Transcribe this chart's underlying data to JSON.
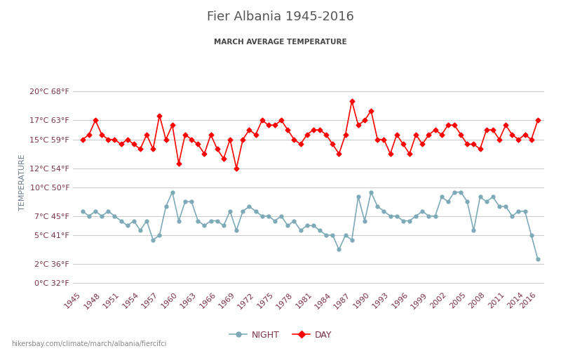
{
  "title": "Fier Albania 1945-2016",
  "subtitle": "MARCH AVERAGE TEMPERATURE",
  "xlabel_url": "hikersbay.com/climate/march/albania/fiercifci",
  "ylabel": "TEMPERATURE",
  "legend_night": "NIGHT",
  "legend_day": "DAY",
  "years": [
    1945,
    1946,
    1947,
    1948,
    1949,
    1950,
    1951,
    1952,
    1953,
    1954,
    1955,
    1956,
    1957,
    1958,
    1959,
    1960,
    1961,
    1962,
    1963,
    1964,
    1965,
    1966,
    1967,
    1968,
    1969,
    1970,
    1971,
    1972,
    1973,
    1974,
    1975,
    1976,
    1977,
    1978,
    1979,
    1980,
    1981,
    1982,
    1983,
    1984,
    1985,
    1986,
    1987,
    1988,
    1989,
    1990,
    1991,
    1992,
    1993,
    1994,
    1995,
    1996,
    1997,
    1998,
    1999,
    2000,
    2001,
    2002,
    2003,
    2004,
    2005,
    2006,
    2007,
    2008,
    2009,
    2010,
    2011,
    2012,
    2013,
    2014,
    2015,
    2016
  ],
  "day_temps": [
    15.0,
    15.5,
    17.0,
    15.5,
    15.0,
    15.0,
    14.5,
    15.0,
    14.5,
    14.0,
    15.5,
    14.0,
    17.5,
    15.0,
    16.5,
    12.5,
    15.5,
    15.0,
    14.5,
    13.5,
    15.5,
    14.0,
    13.0,
    15.0,
    12.0,
    15.0,
    16.0,
    15.5,
    17.0,
    16.5,
    16.5,
    17.0,
    16.0,
    15.0,
    14.5,
    15.5,
    16.0,
    16.0,
    15.5,
    14.5,
    13.5,
    15.5,
    19.0,
    16.5,
    17.0,
    18.0,
    15.0,
    15.0,
    13.5,
    15.5,
    14.5,
    13.5,
    15.5,
    14.5,
    15.5,
    16.0,
    15.5,
    16.5,
    16.5,
    15.5,
    14.5,
    14.5,
    14.0,
    16.0,
    16.0,
    15.0,
    16.5,
    15.5,
    15.0,
    15.5,
    15.0,
    17.0
  ],
  "night_temps": [
    7.5,
    7.0,
    7.5,
    7.0,
    7.5,
    7.0,
    6.5,
    6.0,
    6.5,
    5.5,
    6.5,
    4.5,
    5.0,
    8.0,
    9.5,
    6.5,
    8.5,
    8.5,
    6.5,
    6.0,
    6.5,
    6.5,
    6.0,
    7.5,
    5.5,
    7.5,
    8.0,
    7.5,
    7.0,
    7.0,
    6.5,
    7.0,
    6.0,
    6.5,
    5.5,
    6.0,
    6.0,
    5.5,
    5.0,
    5.0,
    3.5,
    5.0,
    4.5,
    9.0,
    6.5,
    9.5,
    8.0,
    7.5,
    7.0,
    7.0,
    6.5,
    6.5,
    7.0,
    7.5,
    7.0,
    7.0,
    9.0,
    8.5,
    9.5,
    9.5,
    8.5,
    5.5,
    9.0,
    8.5,
    9.0,
    8.0,
    8.0,
    7.0,
    7.5,
    7.5,
    5.0,
    2.5
  ],
  "day_color": "#ff0000",
  "night_color": "#7eaab8",
  "background_color": "#ffffff",
  "grid_color": "#cccccc",
  "title_color": "#555555",
  "subtitle_color": "#444444",
  "axis_label_color": "#7a3344",
  "ylabel_color": "#6b7b8d",
  "yticks_celsius": [
    0,
    2,
    5,
    7,
    10,
    12,
    15,
    17,
    20
  ],
  "yticks_fahrenheit": [
    32,
    36,
    41,
    45,
    50,
    54,
    59,
    63,
    68
  ],
  "ylim": [
    -0.5,
    21.5
  ],
  "xlim": [
    1943.5,
    2017.0
  ],
  "xtick_years": [
    1945,
    1948,
    1951,
    1954,
    1957,
    1960,
    1963,
    1966,
    1969,
    1972,
    1975,
    1978,
    1981,
    1984,
    1987,
    1990,
    1993,
    1996,
    1999,
    2002,
    2005,
    2008,
    2011,
    2014,
    2016
  ]
}
